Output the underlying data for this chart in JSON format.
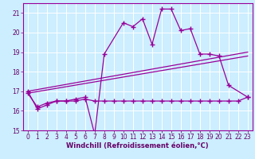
{
  "xlabel": "Windchill (Refroidissement éolien,°C)",
  "bg_color": "#cceeff",
  "grid_color": "#ffffff",
  "line_color": "#990099",
  "xlim": [
    -0.5,
    23.5
  ],
  "ylim": [
    15,
    21.5
  ],
  "yticks": [
    15,
    16,
    17,
    18,
    19,
    20,
    21
  ],
  "xticks": [
    0,
    1,
    2,
    3,
    4,
    5,
    6,
    7,
    8,
    9,
    10,
    11,
    12,
    13,
    14,
    15,
    16,
    17,
    18,
    19,
    20,
    21,
    22,
    23
  ],
  "series1_x": [
    0,
    1,
    2,
    3,
    4,
    5,
    6,
    7,
    8,
    10,
    11,
    12,
    13,
    14,
    15,
    16,
    17,
    18,
    19,
    20,
    21,
    23
  ],
  "series1_y": [
    17.0,
    16.1,
    16.3,
    16.5,
    16.5,
    16.6,
    16.7,
    14.8,
    18.9,
    20.5,
    20.3,
    20.7,
    19.4,
    21.2,
    21.2,
    20.1,
    20.2,
    18.9,
    18.9,
    18.8,
    17.3,
    16.7
  ],
  "series2_x": [
    0,
    1,
    2,
    3,
    4,
    5,
    6,
    7,
    8,
    9,
    10,
    11,
    12,
    13,
    14,
    15,
    16,
    17,
    18,
    19,
    20,
    21,
    22,
    23
  ],
  "series2_y": [
    16.9,
    16.2,
    16.4,
    16.5,
    16.5,
    16.5,
    16.6,
    16.5,
    16.5,
    16.5,
    16.5,
    16.5,
    16.5,
    16.5,
    16.5,
    16.5,
    16.5,
    16.5,
    16.5,
    16.5,
    16.5,
    16.5,
    16.5,
    16.7
  ],
  "series3_x": [
    0,
    23
  ],
  "series3_y": [
    16.9,
    18.8
  ],
  "series4_x": [
    0,
    23
  ],
  "series4_y": [
    17.0,
    19.0
  ],
  "xlabel_fontsize": 6,
  "tick_fontsize": 5.5
}
